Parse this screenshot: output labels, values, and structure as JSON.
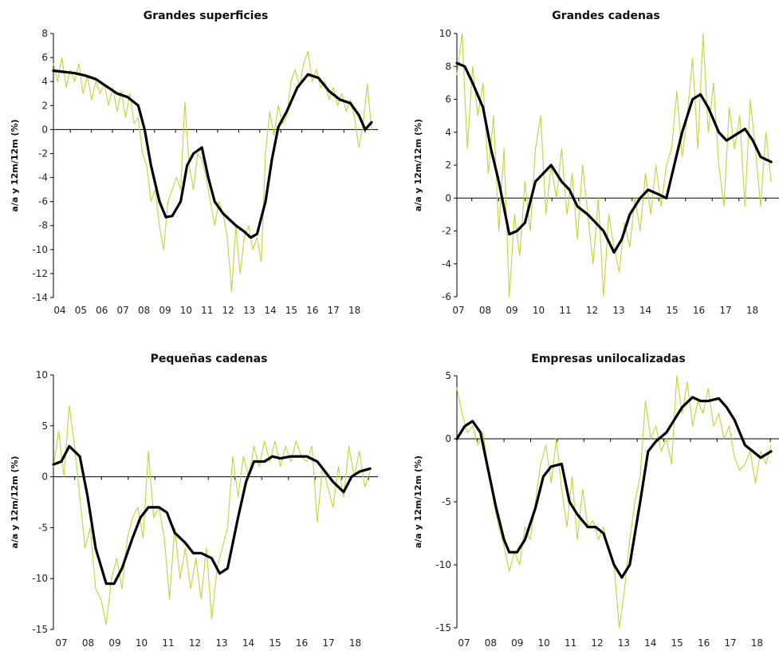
{
  "chart_data": [
    {
      "type": "line",
      "title": "Grandes superficies",
      "ylabel": "a/a y 12m/12m (%)",
      "ylim": [
        -14,
        8
      ],
      "yticks": [
        8,
        6,
        4,
        2,
        0,
        -2,
        -4,
        -6,
        -8,
        -10,
        -12,
        -14
      ],
      "xlim": [
        2004.0,
        2019.3
      ],
      "xtick_labels": [
        "04",
        "05",
        "06",
        "07",
        "08",
        "09",
        "10",
        "11",
        "12",
        "13",
        "14",
        "15",
        "16",
        "17",
        "18"
      ],
      "series": [
        {
          "style": "thin",
          "color": "#c5d13a",
          "x": [
            2004.0,
            2004.2,
            2004.4,
            2004.6,
            2004.8,
            2005.0,
            2005.2,
            2005.4,
            2005.6,
            2005.8,
            2006.0,
            2006.2,
            2006.4,
            2006.6,
            2006.8,
            2007.0,
            2007.2,
            2007.4,
            2007.6,
            2007.8,
            2008.0,
            2008.2,
            2008.4,
            2008.6,
            2008.8,
            2009.0,
            2009.2,
            2009.4,
            2009.6,
            2009.8,
            2010.0,
            2010.2,
            2010.4,
            2010.6,
            2010.8,
            2011.0,
            2011.2,
            2011.4,
            2011.6,
            2011.8,
            2012.0,
            2012.2,
            2012.4,
            2012.6,
            2012.8,
            2013.0,
            2013.2,
            2013.4,
            2013.6,
            2013.8,
            2014.0,
            2014.2,
            2014.4,
            2014.6,
            2014.8,
            2015.0,
            2015.2,
            2015.4,
            2015.6,
            2015.8,
            2016.0,
            2016.2,
            2016.4,
            2016.6,
            2016.8,
            2017.0,
            2017.2,
            2017.4,
            2017.6,
            2017.8,
            2018.0,
            2018.2,
            2018.4,
            2018.6,
            2018.8,
            2019.0
          ],
          "values": [
            5.5,
            4.0,
            6.0,
            3.5,
            5.0,
            4.0,
            5.5,
            3.0,
            4.5,
            2.5,
            4.0,
            3.0,
            3.8,
            2.0,
            3.5,
            1.5,
            3.2,
            1.0,
            3.0,
            0.5,
            1.0,
            -2.0,
            -3.0,
            -6.0,
            -5.0,
            -8.0,
            -10.0,
            -6.0,
            -5.0,
            -4.0,
            -5.0,
            2.3,
            -3.0,
            -5.0,
            -2.0,
            -2.5,
            -4.0,
            -6.0,
            -8.0,
            -6.0,
            -7.0,
            -9.0,
            -13.5,
            -8.0,
            -12.0,
            -9.0,
            -8.0,
            -10.0,
            -9.0,
            -11.0,
            -2.0,
            1.5,
            -0.5,
            2.0,
            0.5,
            1.0,
            4.0,
            5.0,
            3.5,
            5.5,
            6.5,
            4.0,
            5.0,
            3.5,
            4.0,
            2.5,
            3.5,
            2.0,
            3.0,
            1.5,
            2.5,
            1.0,
            -1.5,
            0.5,
            3.8,
            0.0
          ]
        },
        {
          "style": "thick",
          "color": "#000000",
          "x": [
            2004.0,
            2004.5,
            2005.0,
            2005.5,
            2006.0,
            2006.5,
            2007.0,
            2007.5,
            2008.0,
            2008.3,
            2008.6,
            2009.0,
            2009.3,
            2009.6,
            2010.0,
            2010.3,
            2010.6,
            2011.0,
            2011.3,
            2011.6,
            2012.0,
            2012.3,
            2012.6,
            2013.0,
            2013.3,
            2013.6,
            2014.0,
            2014.3,
            2014.6,
            2015.0,
            2015.5,
            2016.0,
            2016.5,
            2017.0,
            2017.5,
            2018.0,
            2018.4,
            2018.7,
            2019.0
          ],
          "values": [
            4.9,
            4.8,
            4.7,
            4.5,
            4.2,
            3.6,
            3.0,
            2.7,
            2.0,
            0.0,
            -3.0,
            -6.0,
            -7.3,
            -7.2,
            -6.0,
            -3.0,
            -2.0,
            -1.5,
            -4.0,
            -6.0,
            -7.0,
            -7.5,
            -8.0,
            -8.5,
            -9.0,
            -8.7,
            -6.0,
            -2.5,
            0.2,
            1.5,
            3.5,
            4.6,
            4.3,
            3.2,
            2.5,
            2.2,
            1.2,
            0.0,
            0.6
          ]
        }
      ]
    },
    {
      "type": "line",
      "title": "Grandes cadenas",
      "ylabel": "a/a y 12m/12m (%)",
      "ylim": [
        -6,
        10
      ],
      "yticks": [
        10,
        8,
        6,
        4,
        2,
        0,
        -2,
        -4,
        -6
      ],
      "xlim": [
        2007.0,
        2019.3
      ],
      "xtick_labels": [
        "07",
        "08",
        "09",
        "10",
        "11",
        "12",
        "13",
        "14",
        "15",
        "16",
        "17",
        "18"
      ],
      "series": [
        {
          "style": "thin",
          "color": "#c5d13a",
          "x": [
            2007.0,
            2007.2,
            2007.4,
            2007.6,
            2007.8,
            2008.0,
            2008.2,
            2008.4,
            2008.6,
            2008.8,
            2009.0,
            2009.2,
            2009.4,
            2009.6,
            2009.8,
            2010.0,
            2010.2,
            2010.4,
            2010.6,
            2010.8,
            2011.0,
            2011.2,
            2011.4,
            2011.6,
            2011.8,
            2012.0,
            2012.2,
            2012.4,
            2012.6,
            2012.8,
            2013.0,
            2013.2,
            2013.4,
            2013.6,
            2013.8,
            2014.0,
            2014.2,
            2014.4,
            2014.6,
            2014.8,
            2015.0,
            2015.2,
            2015.4,
            2015.6,
            2015.8,
            2016.0,
            2016.2,
            2016.4,
            2016.6,
            2016.8,
            2017.0,
            2017.2,
            2017.4,
            2017.6,
            2017.8,
            2018.0,
            2018.2,
            2018.4,
            2018.6,
            2018.8,
            2019.0
          ],
          "values": [
            7.5,
            10.0,
            3.0,
            8.0,
            5.0,
            7.0,
            1.5,
            5.0,
            -2.0,
            3.0,
            -6.0,
            -1.0,
            -3.5,
            1.0,
            -2.0,
            3.0,
            5.0,
            -1.0,
            2.0,
            0.0,
            3.0,
            -1.0,
            1.5,
            -2.5,
            2.0,
            -1.0,
            -4.0,
            0.0,
            -6.0,
            -1.0,
            -3.0,
            -4.5,
            -1.5,
            -3.0,
            0.0,
            -2.0,
            1.5,
            -1.0,
            2.0,
            -0.5,
            2.0,
            3.0,
            6.5,
            2.5,
            5.0,
            8.5,
            3.0,
            10.0,
            4.0,
            7.0,
            2.0,
            -0.5,
            5.5,
            3.0,
            5.0,
            -0.5,
            6.0,
            3.0,
            -0.5,
            4.0,
            1.0
          ]
        },
        {
          "style": "thick",
          "color": "#000000",
          "x": [
            2007.0,
            2007.3,
            2007.6,
            2008.0,
            2008.3,
            2008.6,
            2009.0,
            2009.3,
            2009.6,
            2010.0,
            2010.3,
            2010.6,
            2011.0,
            2011.3,
            2011.6,
            2012.0,
            2012.3,
            2012.6,
            2013.0,
            2013.3,
            2013.6,
            2014.0,
            2014.3,
            2014.6,
            2015.0,
            2015.3,
            2015.6,
            2016.0,
            2016.3,
            2016.6,
            2017.0,
            2017.3,
            2017.6,
            2018.0,
            2018.3,
            2018.6,
            2019.0
          ],
          "values": [
            8.2,
            8.0,
            7.0,
            5.5,
            3.0,
            1.0,
            -2.2,
            -2.0,
            -1.5,
            1.0,
            1.5,
            2.0,
            1.0,
            0.5,
            -0.5,
            -1.0,
            -1.5,
            -2.0,
            -3.3,
            -2.5,
            -1.0,
            0.0,
            0.5,
            0.3,
            0.0,
            2.0,
            4.0,
            6.0,
            6.3,
            5.5,
            4.0,
            3.5,
            3.8,
            4.2,
            3.5,
            2.5,
            2.2
          ]
        }
      ]
    },
    {
      "type": "line",
      "title": "Pequeñas cadenas",
      "ylabel": "a/a y 12m/12m (%)",
      "ylim": [
        -15,
        10
      ],
      "yticks": [
        10,
        5,
        0,
        -5,
        -10,
        -15
      ],
      "xlim": [
        2007.0,
        2019.3
      ],
      "xtick_labels": [
        "07",
        "08",
        "09",
        "10",
        "11",
        "12",
        "13",
        "14",
        "15",
        "16",
        "17",
        "18"
      ],
      "series": [
        {
          "style": "thin",
          "color": "#c5d13a",
          "x": [
            2007.0,
            2007.2,
            2007.4,
            2007.6,
            2007.8,
            2008.0,
            2008.2,
            2008.4,
            2008.6,
            2008.8,
            2009.0,
            2009.2,
            2009.4,
            2009.6,
            2009.8,
            2010.0,
            2010.2,
            2010.4,
            2010.6,
            2010.8,
            2011.0,
            2011.2,
            2011.4,
            2011.6,
            2011.8,
            2012.0,
            2012.2,
            2012.4,
            2012.6,
            2012.8,
            2013.0,
            2013.2,
            2013.4,
            2013.6,
            2013.8,
            2014.0,
            2014.2,
            2014.4,
            2014.6,
            2014.8,
            2015.0,
            2015.2,
            2015.4,
            2015.6,
            2015.8,
            2016.0,
            2016.2,
            2016.4,
            2016.6,
            2016.8,
            2017.0,
            2017.2,
            2017.4,
            2017.6,
            2017.8,
            2018.0,
            2018.2,
            2018.4,
            2018.6,
            2018.8,
            2019.0
          ],
          "values": [
            1.0,
            4.5,
            0.0,
            7.0,
            3.0,
            -2.0,
            -7.0,
            -5.0,
            -11.0,
            -12.0,
            -14.5,
            -10.0,
            -8.0,
            -11.0,
            -6.0,
            -4.0,
            -3.0,
            -6.0,
            2.5,
            -4.0,
            -3.0,
            -6.0,
            -12.0,
            -5.0,
            -10.0,
            -7.0,
            -11.0,
            -8.0,
            -12.0,
            -7.0,
            -14.0,
            -9.0,
            -7.0,
            -5.0,
            2.0,
            -2.0,
            2.0,
            0.0,
            3.0,
            1.0,
            3.5,
            1.5,
            3.5,
            1.0,
            3.0,
            1.5,
            3.5,
            2.0,
            1.5,
            3.0,
            -4.5,
            1.0,
            -1.0,
            -3.0,
            1.0,
            -2.0,
            3.0,
            0.0,
            2.5,
            -1.0,
            0.5
          ]
        },
        {
          "style": "thick",
          "color": "#000000",
          "x": [
            2007.0,
            2007.3,
            2007.6,
            2008.0,
            2008.3,
            2008.6,
            2009.0,
            2009.3,
            2009.6,
            2010.0,
            2010.3,
            2010.6,
            2011.0,
            2011.3,
            2011.6,
            2012.0,
            2012.3,
            2012.6,
            2013.0,
            2013.3,
            2013.6,
            2014.0,
            2014.3,
            2014.6,
            2015.0,
            2015.3,
            2015.6,
            2016.0,
            2016.3,
            2016.6,
            2017.0,
            2017.3,
            2017.6,
            2018.0,
            2018.3,
            2018.6,
            2019.0
          ],
          "values": [
            1.2,
            1.5,
            3.0,
            2.0,
            -2.0,
            -7.0,
            -10.5,
            -10.5,
            -9.0,
            -6.0,
            -4.0,
            -3.0,
            -3.0,
            -3.5,
            -5.5,
            -6.5,
            -7.5,
            -7.5,
            -8.0,
            -9.5,
            -9.0,
            -4.0,
            -0.5,
            1.5,
            1.5,
            2.0,
            1.8,
            2.0,
            2.0,
            2.0,
            1.5,
            0.5,
            -0.5,
            -1.5,
            0.0,
            0.5,
            0.8
          ]
        }
      ]
    },
    {
      "type": "line",
      "title": "Empresas unilocalizadas",
      "ylabel": "a/a y 12m/12m (%)",
      "ylim": [
        -15,
        5
      ],
      "yticks": [
        5,
        0,
        -5,
        -10,
        -15
      ],
      "xlim": [
        2007.0,
        2019.3
      ],
      "xtick_labels": [
        "07",
        "08",
        "09",
        "10",
        "11",
        "12",
        "13",
        "14",
        "15",
        "16",
        "17",
        "18"
      ],
      "series": [
        {
          "style": "thin",
          "color": "#c5d13a",
          "x": [
            2007.0,
            2007.2,
            2007.4,
            2007.6,
            2007.8,
            2008.0,
            2008.2,
            2008.4,
            2008.6,
            2008.8,
            2009.0,
            2009.2,
            2009.4,
            2009.6,
            2009.8,
            2010.0,
            2010.2,
            2010.4,
            2010.6,
            2010.8,
            2011.0,
            2011.2,
            2011.4,
            2011.6,
            2011.8,
            2012.0,
            2012.2,
            2012.4,
            2012.6,
            2012.8,
            2013.0,
            2013.2,
            2013.4,
            2013.6,
            2013.8,
            2014.0,
            2014.2,
            2014.4,
            2014.6,
            2014.8,
            2015.0,
            2015.2,
            2015.4,
            2015.6,
            2015.8,
            2016.0,
            2016.2,
            2016.4,
            2016.6,
            2016.8,
            2017.0,
            2017.2,
            2017.4,
            2017.6,
            2017.8,
            2018.0,
            2018.2,
            2018.4,
            2018.6,
            2018.8,
            2019.0
          ],
          "values": [
            4.0,
            2.0,
            0.5,
            1.0,
            -0.5,
            0.5,
            -2.5,
            -5.0,
            -7.0,
            -8.5,
            -10.5,
            -9.0,
            -10.0,
            -7.0,
            -8.0,
            -5.0,
            -2.0,
            -0.5,
            -3.5,
            0.0,
            -4.0,
            -7.0,
            -3.0,
            -8.0,
            -4.0,
            -7.0,
            -6.5,
            -8.0,
            -7.0,
            -9.0,
            -10.0,
            -15.0,
            -12.0,
            -8.0,
            -5.0,
            -3.0,
            3.0,
            0.0,
            1.0,
            -1.0,
            0.0,
            -2.0,
            5.0,
            2.0,
            4.5,
            1.0,
            3.0,
            2.0,
            4.0,
            1.0,
            2.0,
            0.0,
            1.0,
            -1.5,
            -2.5,
            -2.0,
            -1.0,
            -3.5,
            -1.0,
            -2.0,
            -0.5
          ]
        },
        {
          "style": "thick",
          "color": "#000000",
          "x": [
            2007.0,
            2007.3,
            2007.6,
            2007.9,
            2008.2,
            2008.5,
            2008.8,
            2009.0,
            2009.3,
            2009.6,
            2010.0,
            2010.3,
            2010.6,
            2011.0,
            2011.3,
            2011.6,
            2012.0,
            2012.3,
            2012.6,
            2013.0,
            2013.3,
            2013.6,
            2014.0,
            2014.3,
            2014.6,
            2015.0,
            2015.3,
            2015.6,
            2016.0,
            2016.3,
            2016.6,
            2017.0,
            2017.3,
            2017.6,
            2018.0,
            2018.3,
            2018.6,
            2019.0
          ],
          "values": [
            0.0,
            1.0,
            1.4,
            0.5,
            -2.5,
            -5.5,
            -8.0,
            -9.0,
            -9.0,
            -8.0,
            -5.5,
            -3.0,
            -2.2,
            -2.0,
            -5.0,
            -6.0,
            -7.0,
            -7.0,
            -7.5,
            -10.0,
            -11.0,
            -10.0,
            -5.0,
            -1.0,
            -0.2,
            0.5,
            1.5,
            2.5,
            3.3,
            3.0,
            3.0,
            3.2,
            2.5,
            1.5,
            -0.5,
            -1.0,
            -1.5,
            -1.0
          ]
        }
      ]
    }
  ]
}
